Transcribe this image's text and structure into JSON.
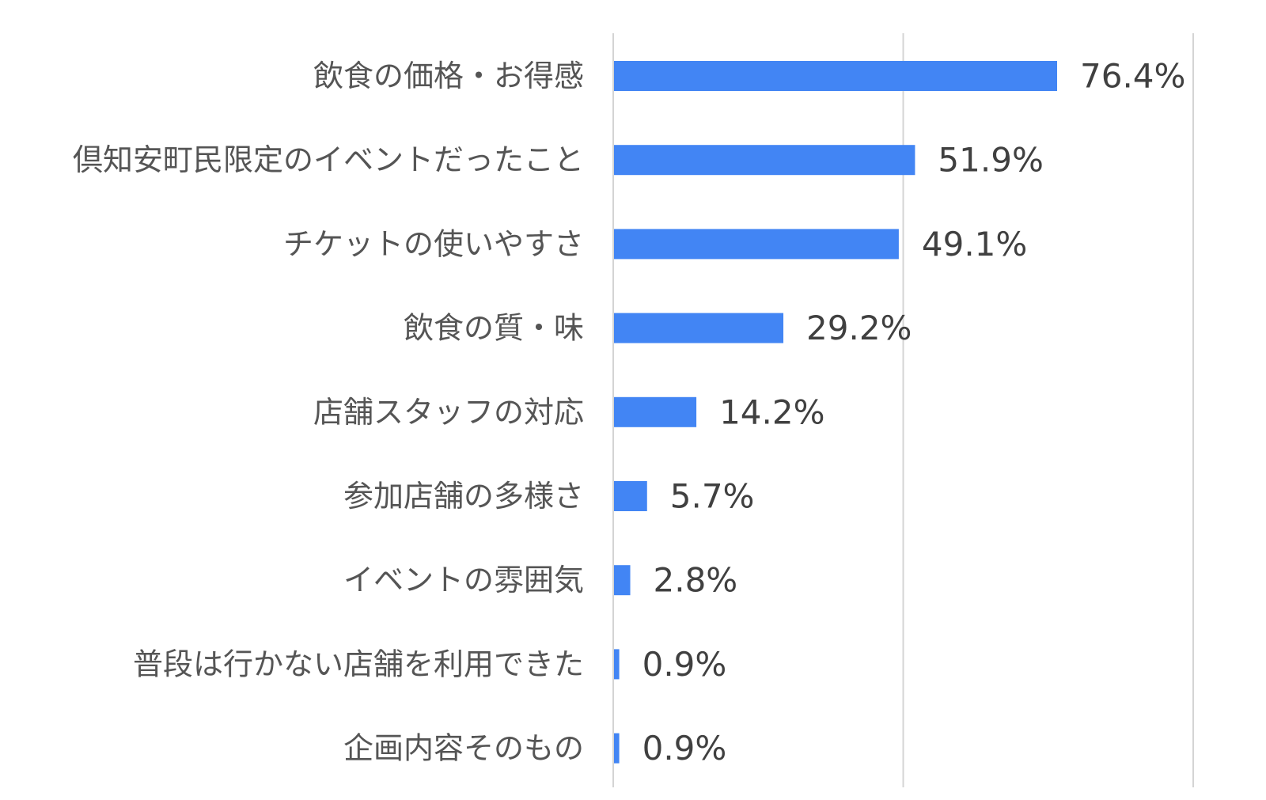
{
  "chart_data": {
    "type": "bar",
    "orientation": "horizontal",
    "categories": [
      "飲食の価格・お得感",
      "倶知安町民限定のイベントだったこと",
      "チケットの使いやすさ",
      "飲食の質・味",
      "店舗スタッフの対応",
      "参加店舗の多様さ",
      "イベントの雰囲気",
      "普段は行かない店舗を利用できた",
      "企画内容そのもの"
    ],
    "values": [
      76.4,
      51.9,
      49.1,
      29.2,
      14.2,
      5.7,
      2.8,
      0.9,
      0.9
    ],
    "value_labels": [
      "76.4%",
      "51.9%",
      "49.1%",
      "29.2%",
      "14.2%",
      "5.7%",
      "2.8%",
      "0.9%",
      "0.9%"
    ],
    "xlim": [
      0,
      100
    ],
    "gridlines": [
      0,
      50,
      100
    ],
    "grid": true,
    "legend": "none",
    "bar_color": "#4285f4",
    "title": "",
    "xlabel": "",
    "ylabel": ""
  }
}
